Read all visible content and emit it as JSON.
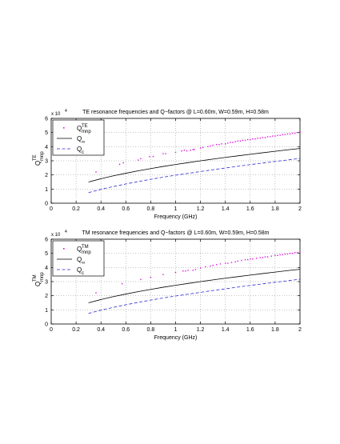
{
  "chart_data": [
    {
      "type": "scatter",
      "title": "TE resonance frequencies and Q−factors @ L=0.60m, W=0.59m, H=0.58m",
      "xlabel": "Frequency (GHz)",
      "ylabel": "Q",
      "ylabel_sub": "mnp",
      "ylabel_sup": "TE",
      "y_exponent_label": "x 10",
      "y_exponent_power": "4",
      "xlim": [
        0,
        2
      ],
      "ylim": [
        0,
        6
      ],
      "x_ticks": [
        "0",
        "0.2",
        "0.4",
        "0.6",
        "0.8",
        "1",
        "1.2",
        "1.4",
        "1.6",
        "1.8",
        "2"
      ],
      "y_ticks": [
        "0",
        "1",
        "2",
        "3",
        "4",
        "5",
        "6"
      ],
      "grid": true,
      "legend_position": "top-left",
      "legend": [
        {
          "main": "Q",
          "sub": "mnp",
          "sup": "TE",
          "marker": "point"
        },
        {
          "main": "Q",
          "sub": "∞",
          "sup": "",
          "marker": "line"
        },
        {
          "main": "Q",
          "sub": "c",
          "sup": "",
          "marker": "dash"
        }
      ],
      "colors": {
        "points": "#e010e0",
        "q_inf": "#000000",
        "q_c": "#2b2bd6"
      },
      "series": [
        {
          "kind": "points",
          "x": [
            0.36,
            0.55,
            0.58,
            0.7,
            0.72,
            0.79,
            0.82,
            0.9,
            0.92,
            1.0,
            1.05,
            1.07,
            1.09,
            1.12,
            1.14,
            1.15,
            1.2,
            1.22,
            1.26,
            1.28,
            1.3,
            1.33,
            1.35,
            1.37,
            1.4,
            1.42,
            1.44,
            1.46,
            1.48,
            1.5,
            1.52,
            1.54,
            1.56,
            1.58,
            1.6,
            1.62,
            1.64,
            1.66,
            1.68,
            1.7,
            1.72,
            1.74,
            1.76,
            1.78,
            1.8,
            1.82,
            1.84,
            1.86,
            1.88,
            1.9,
            1.92,
            1.94,
            1.96,
            1.98,
            2.0
          ],
          "y": [
            2.2,
            2.75,
            2.85,
            3.05,
            3.15,
            3.3,
            3.3,
            3.5,
            3.5,
            3.6,
            3.7,
            3.75,
            3.7,
            3.75,
            3.8,
            3.8,
            3.9,
            3.95,
            4.0,
            4.05,
            4.1,
            4.15,
            4.15,
            4.2,
            4.2,
            4.25,
            4.3,
            4.3,
            4.35,
            4.4,
            4.4,
            4.45,
            4.45,
            4.5,
            4.5,
            4.55,
            4.55,
            4.6,
            4.6,
            4.65,
            4.65,
            4.7,
            4.7,
            4.75,
            4.75,
            4.8,
            4.8,
            4.85,
            4.85,
            4.9,
            4.9,
            4.95,
            4.95,
            5.0,
            5.05
          ]
        },
        {
          "kind": "q_inf",
          "x": [
            0.3,
            0.4,
            0.5,
            0.6,
            0.7,
            0.8,
            0.9,
            1.0,
            1.1,
            1.2,
            1.3,
            1.4,
            1.5,
            1.6,
            1.7,
            1.8,
            1.9,
            2.0
          ],
          "y": [
            1.5,
            1.73,
            1.94,
            2.12,
            2.29,
            2.45,
            2.6,
            2.74,
            2.87,
            3.0,
            3.12,
            3.24,
            3.35,
            3.46,
            3.57,
            3.67,
            3.78,
            3.87
          ]
        },
        {
          "kind": "q_c",
          "x": [
            0.3,
            0.4,
            0.5,
            0.6,
            0.7,
            0.8,
            0.9,
            1.0,
            1.1,
            1.2,
            1.3,
            1.4,
            1.5,
            1.6,
            1.7,
            1.8,
            1.9,
            2.0
          ],
          "y": [
            0.75,
            0.98,
            1.18,
            1.36,
            1.53,
            1.69,
            1.84,
            1.98,
            2.11,
            2.24,
            2.37,
            2.49,
            2.61,
            2.73,
            2.84,
            2.95,
            3.06,
            3.17
          ]
        }
      ]
    },
    {
      "type": "scatter",
      "title": "TM resonance frequencies and Q−factors @ L=0.60m, W=0.59m, H=0.58m",
      "xlabel": "Frequency (GHz)",
      "ylabel": "Q",
      "ylabel_sub": "mnp",
      "ylabel_sup": "TM",
      "y_exponent_label": "x 10",
      "y_exponent_power": "4",
      "xlim": [
        0,
        2
      ],
      "ylim": [
        0,
        6
      ],
      "x_ticks": [
        "0",
        "0.2",
        "0.4",
        "0.6",
        "0.8",
        "1",
        "1.2",
        "1.4",
        "1.6",
        "1.8",
        "2"
      ],
      "y_ticks": [
        "0",
        "1",
        "2",
        "3",
        "4",
        "5",
        "6"
      ],
      "grid": true,
      "legend_position": "top-left",
      "legend": [
        {
          "main": "Q",
          "sub": "mnp",
          "sup": "TM",
          "marker": "point"
        },
        {
          "main": "Q",
          "sub": "∞",
          "sup": "",
          "marker": "line"
        },
        {
          "main": "Q",
          "sub": "c",
          "sup": "",
          "marker": "dash"
        }
      ],
      "colors": {
        "points": "#e010e0",
        "q_inf": "#000000",
        "q_c": "#2b2bd6"
      },
      "series": [
        {
          "kind": "points",
          "x": [
            0.36,
            0.57,
            0.72,
            0.8,
            0.9,
            1.0,
            1.06,
            1.08,
            1.1,
            1.14,
            1.16,
            1.2,
            1.24,
            1.28,
            1.3,
            1.33,
            1.36,
            1.4,
            1.42,
            1.45,
            1.48,
            1.5,
            1.53,
            1.56,
            1.58,
            1.6,
            1.62,
            1.65,
            1.68,
            1.7,
            1.72,
            1.74,
            1.77,
            1.8,
            1.82,
            1.84,
            1.86,
            1.88,
            1.9,
            1.92,
            1.94,
            1.96,
            1.98,
            2.0
          ],
          "y": [
            2.2,
            2.85,
            3.15,
            3.3,
            3.5,
            3.65,
            3.75,
            3.75,
            3.8,
            3.8,
            3.85,
            3.95,
            4.05,
            4.1,
            4.15,
            4.2,
            4.25,
            4.3,
            4.3,
            4.35,
            4.4,
            4.45,
            4.5,
            4.55,
            4.55,
            4.6,
            4.6,
            4.65,
            4.7,
            4.7,
            4.75,
            4.75,
            4.8,
            4.85,
            4.85,
            4.9,
            4.9,
            4.95,
            4.95,
            5.0,
            5.0,
            5.05,
            5.05,
            5.1
          ]
        },
        {
          "kind": "q_inf",
          "x": [
            0.3,
            0.4,
            0.5,
            0.6,
            0.7,
            0.8,
            0.9,
            1.0,
            1.1,
            1.2,
            1.3,
            1.4,
            1.5,
            1.6,
            1.7,
            1.8,
            1.9,
            2.0
          ],
          "y": [
            1.5,
            1.73,
            1.94,
            2.12,
            2.29,
            2.45,
            2.6,
            2.74,
            2.87,
            3.0,
            3.12,
            3.24,
            3.35,
            3.46,
            3.57,
            3.67,
            3.78,
            3.87
          ]
        },
        {
          "kind": "q_c",
          "x": [
            0.3,
            0.4,
            0.5,
            0.6,
            0.7,
            0.8,
            0.9,
            1.0,
            1.1,
            1.2,
            1.3,
            1.4,
            1.5,
            1.6,
            1.7,
            1.8,
            1.9,
            2.0
          ],
          "y": [
            0.75,
            0.98,
            1.18,
            1.36,
            1.53,
            1.69,
            1.84,
            1.98,
            2.11,
            2.24,
            2.37,
            2.49,
            2.61,
            2.73,
            2.84,
            2.95,
            3.06,
            3.17
          ]
        }
      ]
    }
  ]
}
